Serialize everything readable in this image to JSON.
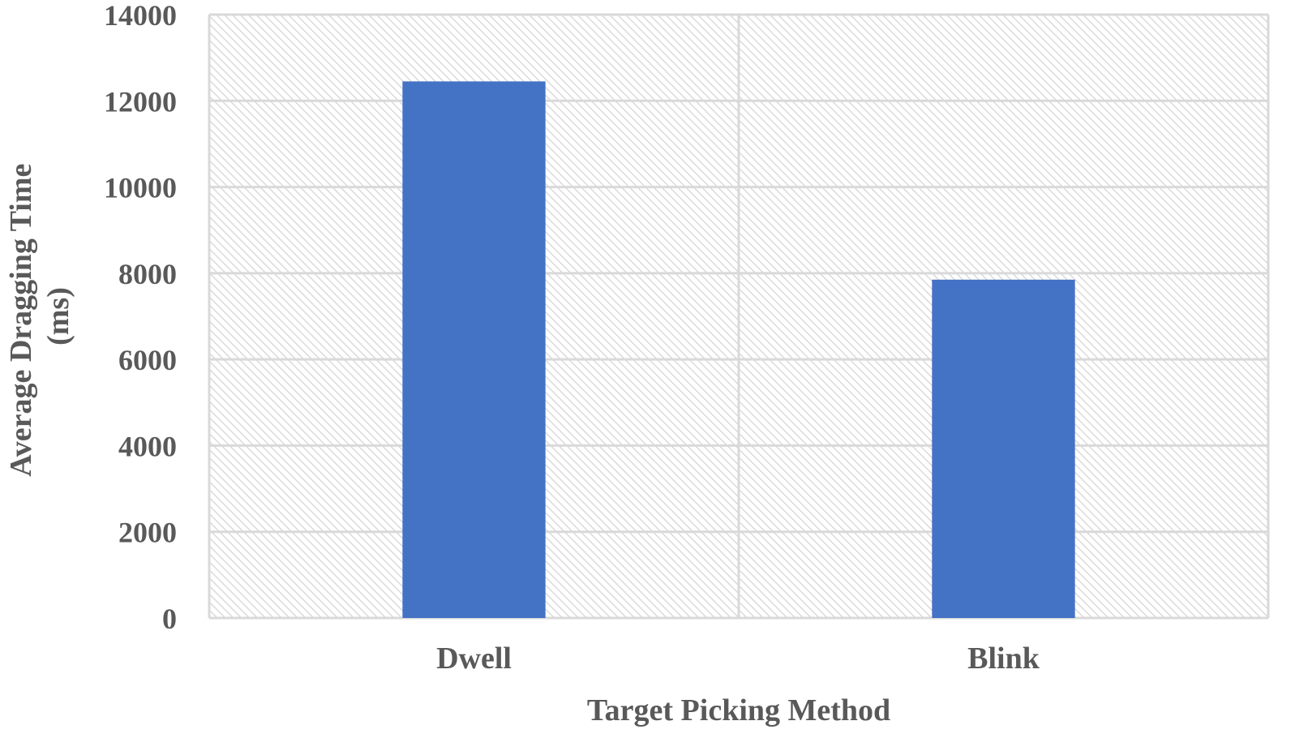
{
  "chart_data": {
    "type": "bar",
    "title": "",
    "categories": [
      "Dwell",
      "Blink"
    ],
    "values": [
      12450,
      7850
    ],
    "xlabel": "Target Picking Method",
    "ylabel_lines": [
      "Average Dragging Time",
      "(ms)"
    ],
    "ylim": [
      0,
      14000
    ],
    "yticks": [
      "0",
      "2000",
      "4000",
      "6000",
      "8000",
      "10000",
      "12000",
      "14000"
    ],
    "grid": true,
    "legend": "none",
    "colors": {
      "bar": "#4472C4",
      "grid": "#d9d9d9",
      "hatch": "#d4d4d4",
      "text": "#595959"
    }
  }
}
